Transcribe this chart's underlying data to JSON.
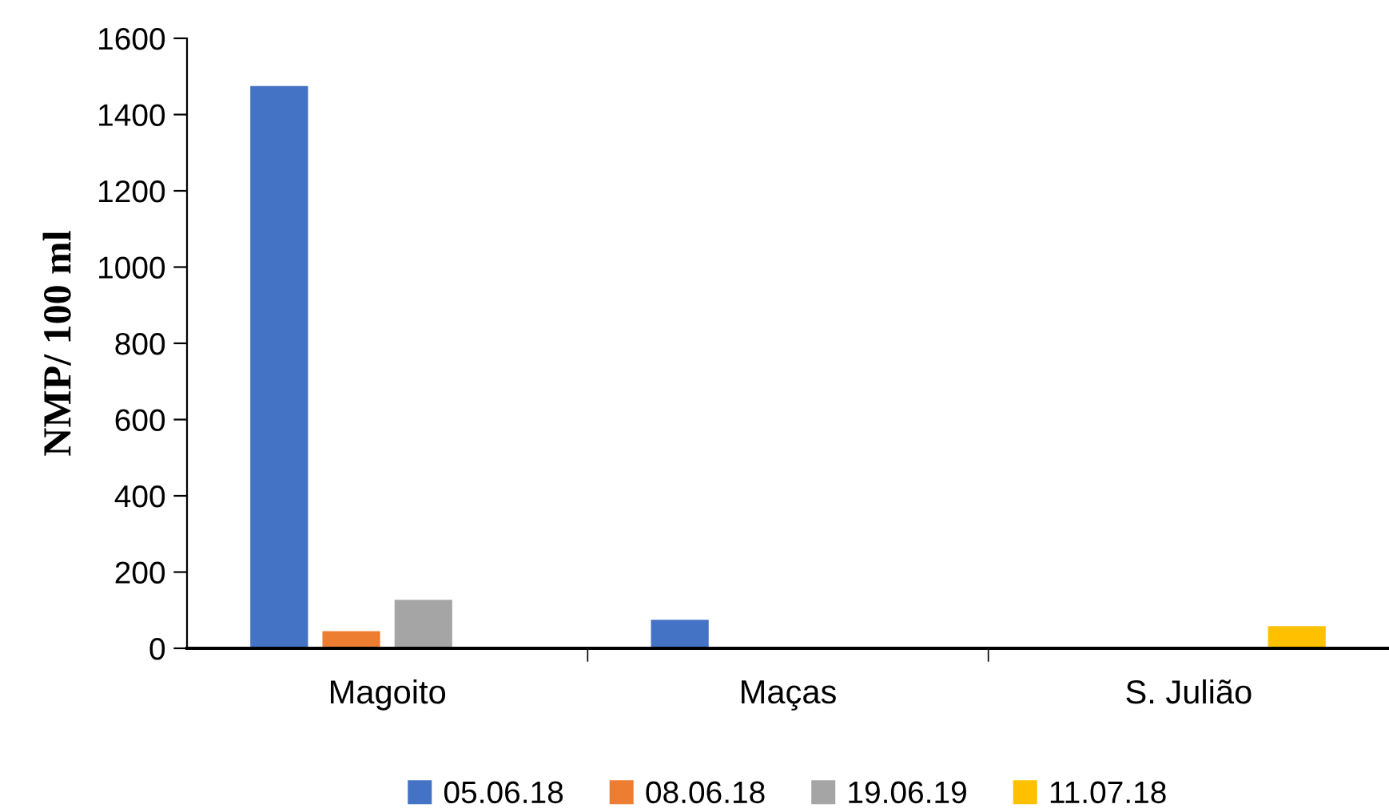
{
  "chart_data": {
    "type": "bar",
    "ylabel": "NMP/ 100 ml",
    "categories": [
      "Magoito",
      "Maças",
      "S. Julião"
    ],
    "series": [
      {
        "name": "05.06.18",
        "color": "#4472c4",
        "values": [
          1475,
          75,
          null
        ]
      },
      {
        "name": "08.06.18",
        "color": "#ed7d31",
        "values": [
          45,
          null,
          null
        ]
      },
      {
        "name": "19.06.19",
        "color": "#a5a5a5",
        "values": [
          127,
          null,
          null
        ]
      },
      {
        "name": "11.07.18",
        "color": "#ffc000",
        "values": [
          null,
          null,
          58
        ]
      }
    ],
    "ylim": [
      0,
      1600
    ],
    "yticks": [
      0,
      200,
      400,
      600,
      800,
      1000,
      1200,
      1400,
      1600
    ],
    "grid": false,
    "legend": "bottom"
  }
}
